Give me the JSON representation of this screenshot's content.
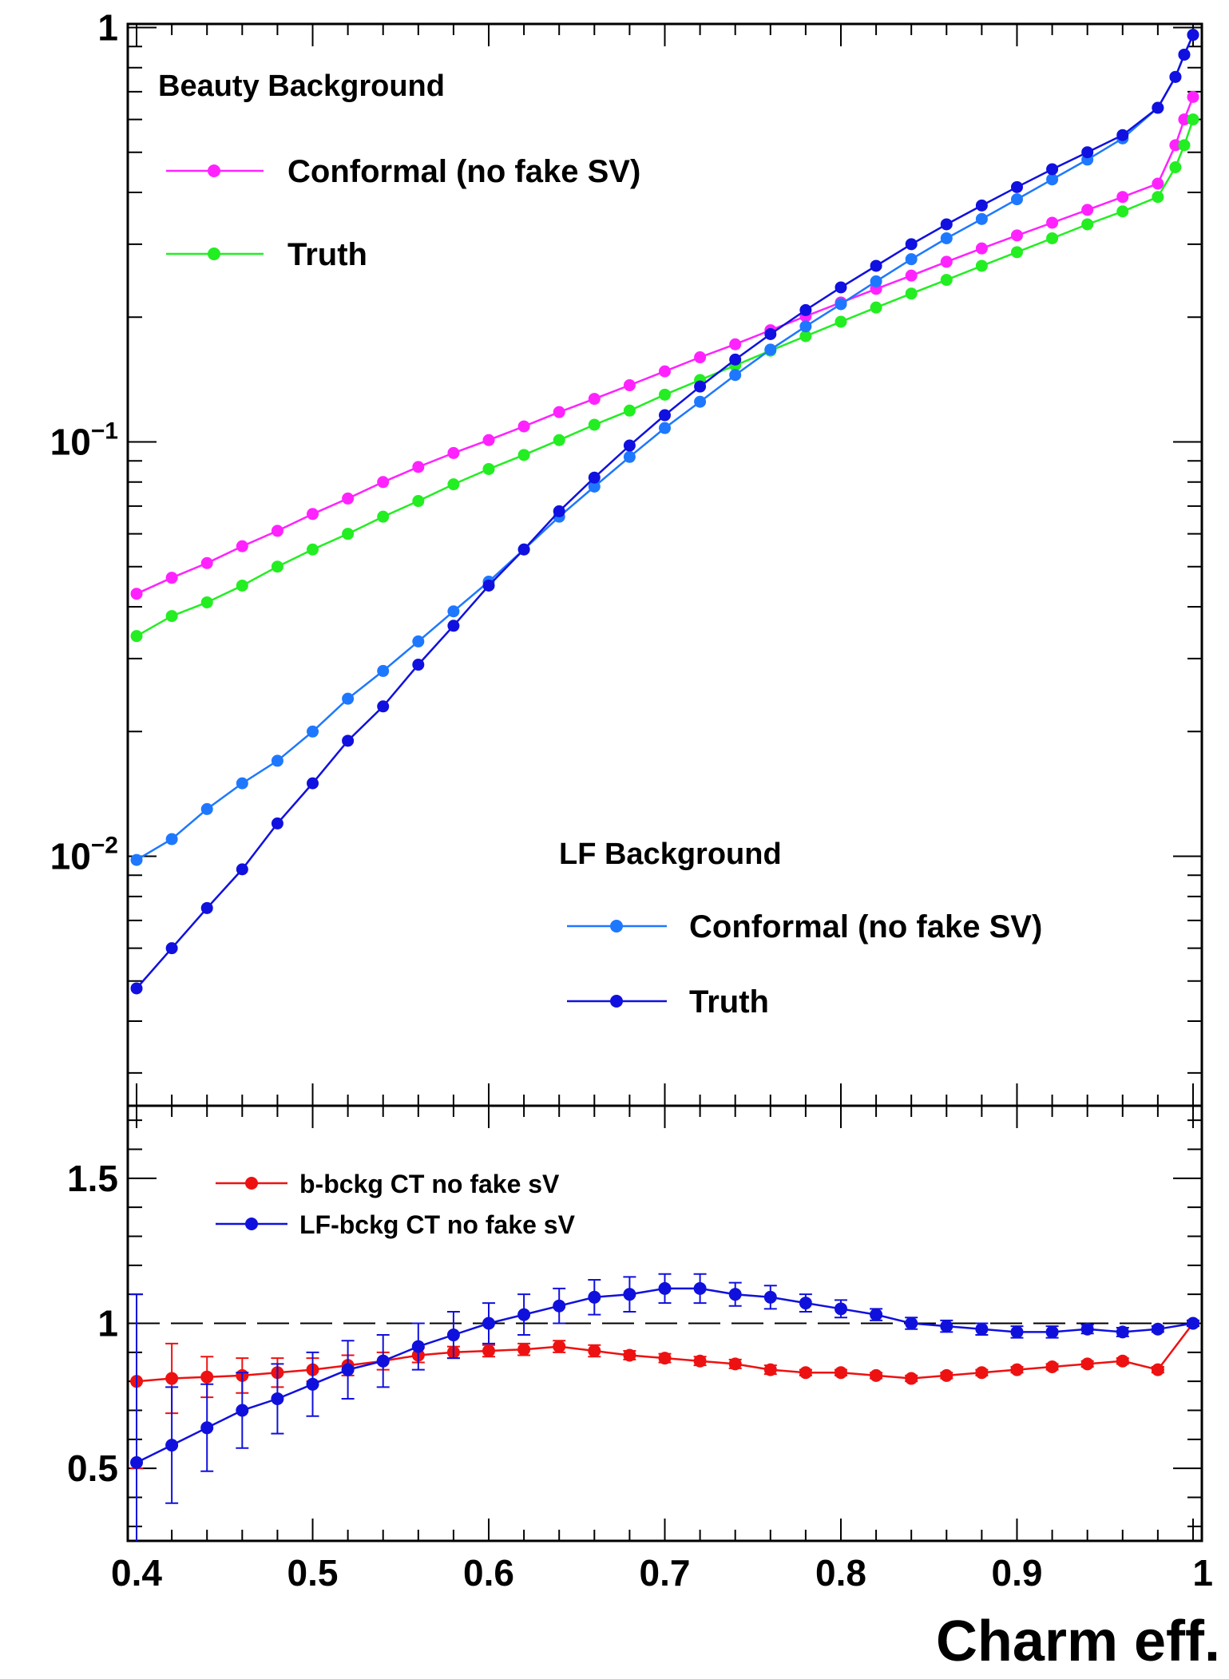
{
  "chart_data": [
    {
      "type": "line",
      "panel": "top",
      "yscale": "log",
      "xlim": [
        0.395,
        1.005
      ],
      "ylim": [
        0.0025,
        1.02
      ],
      "ytick_labels": [
        {
          "value": 1,
          "base": "1",
          "exp": ""
        },
        {
          "value": 0.1,
          "base": "10",
          "exp": "−1"
        },
        {
          "value": 0.01,
          "base": "10",
          "exp": "−2"
        }
      ],
      "legends": [
        {
          "header": "Beauty Background",
          "entries": [
            "Conformal (no fake SV)",
            "Truth"
          ],
          "placement": "top-left"
        },
        {
          "header": "LF Background",
          "entries": [
            "Conformal (no fake SV)",
            "Truth"
          ],
          "placement": "bottom-right"
        }
      ],
      "series": [
        {
          "name": "Conformal (no fake SV)",
          "group": "Beauty Background",
          "color": "#ff22ff",
          "x": [
            0.4,
            0.42,
            0.44,
            0.46,
            0.48,
            0.5,
            0.52,
            0.54,
            0.56,
            0.58,
            0.6,
            0.62,
            0.64,
            0.66,
            0.68,
            0.7,
            0.72,
            0.74,
            0.76,
            0.78,
            0.8,
            0.82,
            0.84,
            0.86,
            0.88,
            0.9,
            0.92,
            0.94,
            0.96,
            0.98,
            0.99,
            0.995,
            1.0
          ],
          "y": [
            0.043,
            0.047,
            0.051,
            0.056,
            0.061,
            0.067,
            0.073,
            0.08,
            0.087,
            0.094,
            0.101,
            0.109,
            0.118,
            0.127,
            0.137,
            0.148,
            0.16,
            0.172,
            0.186,
            0.201,
            0.217,
            0.234,
            0.252,
            0.272,
            0.293,
            0.315,
            0.338,
            0.363,
            0.39,
            0.42,
            0.52,
            0.6,
            0.68
          ]
        },
        {
          "name": "Truth",
          "group": "Beauty Background",
          "color": "#22ee22",
          "x": [
            0.4,
            0.42,
            0.44,
            0.46,
            0.48,
            0.5,
            0.52,
            0.54,
            0.56,
            0.58,
            0.6,
            0.62,
            0.64,
            0.66,
            0.68,
            0.7,
            0.72,
            0.74,
            0.76,
            0.78,
            0.8,
            0.82,
            0.84,
            0.86,
            0.88,
            0.9,
            0.92,
            0.94,
            0.96,
            0.98,
            0.99,
            0.995,
            1.0
          ],
          "y": [
            0.034,
            0.038,
            0.041,
            0.045,
            0.05,
            0.055,
            0.06,
            0.066,
            0.072,
            0.079,
            0.086,
            0.093,
            0.101,
            0.11,
            0.119,
            0.13,
            0.141,
            0.153,
            0.166,
            0.18,
            0.195,
            0.211,
            0.228,
            0.246,
            0.266,
            0.287,
            0.31,
            0.335,
            0.36,
            0.39,
            0.46,
            0.52,
            0.6
          ]
        },
        {
          "name": "Conformal (no fake SV)",
          "group": "LF Background",
          "color": "#1e78ff",
          "x": [
            0.4,
            0.42,
            0.44,
            0.46,
            0.48,
            0.5,
            0.52,
            0.54,
            0.56,
            0.58,
            0.6,
            0.62,
            0.64,
            0.66,
            0.68,
            0.7,
            0.72,
            0.74,
            0.76,
            0.78,
            0.8,
            0.82,
            0.84,
            0.86,
            0.88,
            0.9,
            0.92,
            0.94,
            0.96,
            0.98,
            0.99,
            0.995,
            1.0
          ],
          "y": [
            0.0098,
            0.011,
            0.013,
            0.015,
            0.017,
            0.02,
            0.024,
            0.028,
            0.033,
            0.039,
            0.046,
            0.055,
            0.066,
            0.078,
            0.092,
            0.108,
            0.125,
            0.145,
            0.167,
            0.19,
            0.215,
            0.244,
            0.276,
            0.31,
            0.345,
            0.385,
            0.43,
            0.48,
            0.54,
            0.64,
            0.76,
            0.86,
            0.96
          ]
        },
        {
          "name": "Truth",
          "group": "LF Background",
          "color": "#1010e0",
          "x": [
            0.4,
            0.42,
            0.44,
            0.46,
            0.48,
            0.5,
            0.52,
            0.54,
            0.56,
            0.58,
            0.6,
            0.62,
            0.64,
            0.66,
            0.68,
            0.7,
            0.72,
            0.74,
            0.76,
            0.78,
            0.8,
            0.82,
            0.84,
            0.86,
            0.88,
            0.9,
            0.92,
            0.94,
            0.96,
            0.98,
            0.99,
            0.995,
            1.0
          ],
          "y": [
            0.0048,
            0.006,
            0.0075,
            0.0093,
            0.012,
            0.015,
            0.019,
            0.023,
            0.029,
            0.036,
            0.045,
            0.055,
            0.068,
            0.082,
            0.098,
            0.116,
            0.136,
            0.158,
            0.182,
            0.208,
            0.236,
            0.266,
            0.3,
            0.335,
            0.372,
            0.412,
            0.455,
            0.5,
            0.55,
            0.64,
            0.76,
            0.86,
            0.96
          ]
        }
      ]
    },
    {
      "type": "line",
      "panel": "bottom",
      "xlabel": "Charm eff.",
      "xlim": [
        0.395,
        1.005
      ],
      "ylim": [
        0.25,
        1.75
      ],
      "xtick_labels": [
        "0.4",
        "0.5",
        "0.6",
        "0.7",
        "0.8",
        "0.9",
        "1"
      ],
      "ytick_labels": [
        "0.5",
        "1",
        "1.5"
      ],
      "reference_line": 1,
      "legend": {
        "placement": "top-left",
        "entries": [
          "b-bckg CT no fake sV",
          "LF-bckg CT no fake sV"
        ]
      },
      "series": [
        {
          "name": "b-bckg CT no fake sV",
          "color": "#ee1111",
          "x": [
            0.4,
            0.42,
            0.44,
            0.46,
            0.48,
            0.5,
            0.52,
            0.54,
            0.56,
            0.58,
            0.6,
            0.62,
            0.64,
            0.66,
            0.68,
            0.7,
            0.72,
            0.74,
            0.76,
            0.78,
            0.8,
            0.82,
            0.84,
            0.86,
            0.88,
            0.9,
            0.92,
            0.94,
            0.96,
            0.98,
            1.0
          ],
          "y": [
            0.8,
            0.81,
            0.815,
            0.82,
            0.83,
            0.84,
            0.855,
            0.87,
            0.89,
            0.9,
            0.905,
            0.91,
            0.92,
            0.905,
            0.89,
            0.88,
            0.87,
            0.86,
            0.84,
            0.83,
            0.83,
            0.82,
            0.81,
            0.82,
            0.83,
            0.84,
            0.85,
            0.86,
            0.87,
            0.84,
            1.0
          ],
          "yerr": [
            0.3,
            0.12,
            0.07,
            0.06,
            0.05,
            0.04,
            0.035,
            0.03,
            0.025,
            0.02,
            0.02,
            0.02,
            0.02,
            0.02,
            0.015,
            0.015,
            0.015,
            0.015,
            0.015,
            0.01,
            0.01,
            0.01,
            0.01,
            0.01,
            0.01,
            0.01,
            0.01,
            0.01,
            0.01,
            0.01,
            0.01
          ]
        },
        {
          "name": "LF-bckg CT no fake sV",
          "color": "#1010dd",
          "x": [
            0.4,
            0.42,
            0.44,
            0.46,
            0.48,
            0.5,
            0.52,
            0.54,
            0.56,
            0.58,
            0.6,
            0.62,
            0.64,
            0.66,
            0.68,
            0.7,
            0.72,
            0.74,
            0.76,
            0.78,
            0.8,
            0.82,
            0.84,
            0.86,
            0.88,
            0.9,
            0.92,
            0.94,
            0.96,
            0.98,
            1.0
          ],
          "y": [
            0.52,
            0.58,
            0.64,
            0.7,
            0.74,
            0.79,
            0.84,
            0.87,
            0.92,
            0.96,
            1.0,
            1.03,
            1.06,
            1.09,
            1.1,
            1.12,
            1.12,
            1.1,
            1.09,
            1.07,
            1.05,
            1.03,
            1.0,
            0.99,
            0.98,
            0.97,
            0.97,
            0.98,
            0.97,
            0.98,
            1.0
          ],
          "yerr": [
            0.58,
            0.2,
            0.15,
            0.13,
            0.12,
            0.11,
            0.1,
            0.09,
            0.08,
            0.08,
            0.07,
            0.07,
            0.06,
            0.06,
            0.06,
            0.05,
            0.05,
            0.04,
            0.04,
            0.03,
            0.03,
            0.02,
            0.02,
            0.02,
            0.02,
            0.02,
            0.02,
            0.015,
            0.015,
            0.01,
            0.01
          ]
        }
      ]
    }
  ]
}
